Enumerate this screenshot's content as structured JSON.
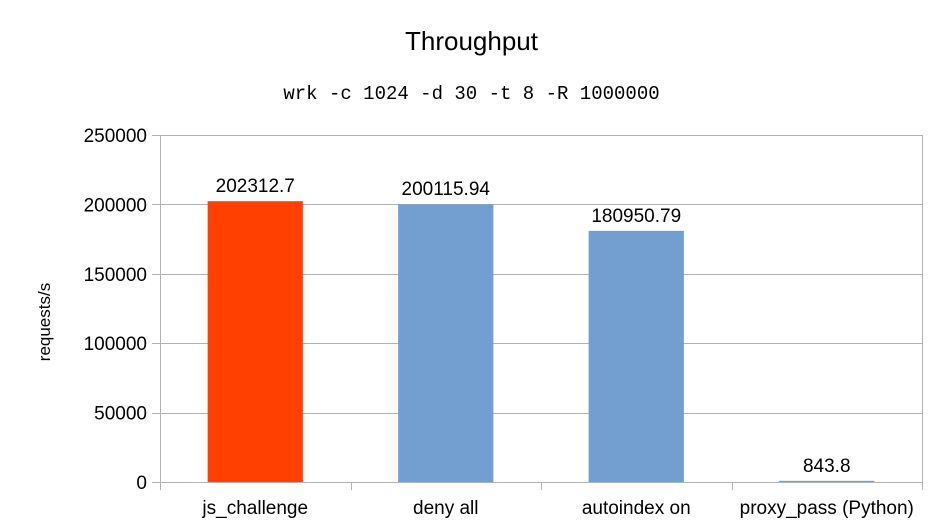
{
  "chart_data": {
    "type": "bar",
    "title": "Throughput",
    "subtitle": "wrk -c 1024 -d 30 -t 8 -R 1000000",
    "xlabel": "",
    "ylabel": "requests/s",
    "ylim": [
      0,
      250000
    ],
    "yticks": [
      0,
      50000,
      100000,
      150000,
      200000,
      250000
    ],
    "grid": true,
    "categories": [
      "js_challenge",
      "deny all",
      "autoindex on",
      "proxy_pass (Python)"
    ],
    "values": [
      202312.7,
      200115.94,
      180950.79,
      843.8
    ],
    "value_labels": [
      "202312.7",
      "200115.94",
      "180950.79",
      "843.8"
    ],
    "colors": [
      "#ff4000",
      "#729fcf",
      "#729fcf",
      "#729fcf"
    ]
  }
}
